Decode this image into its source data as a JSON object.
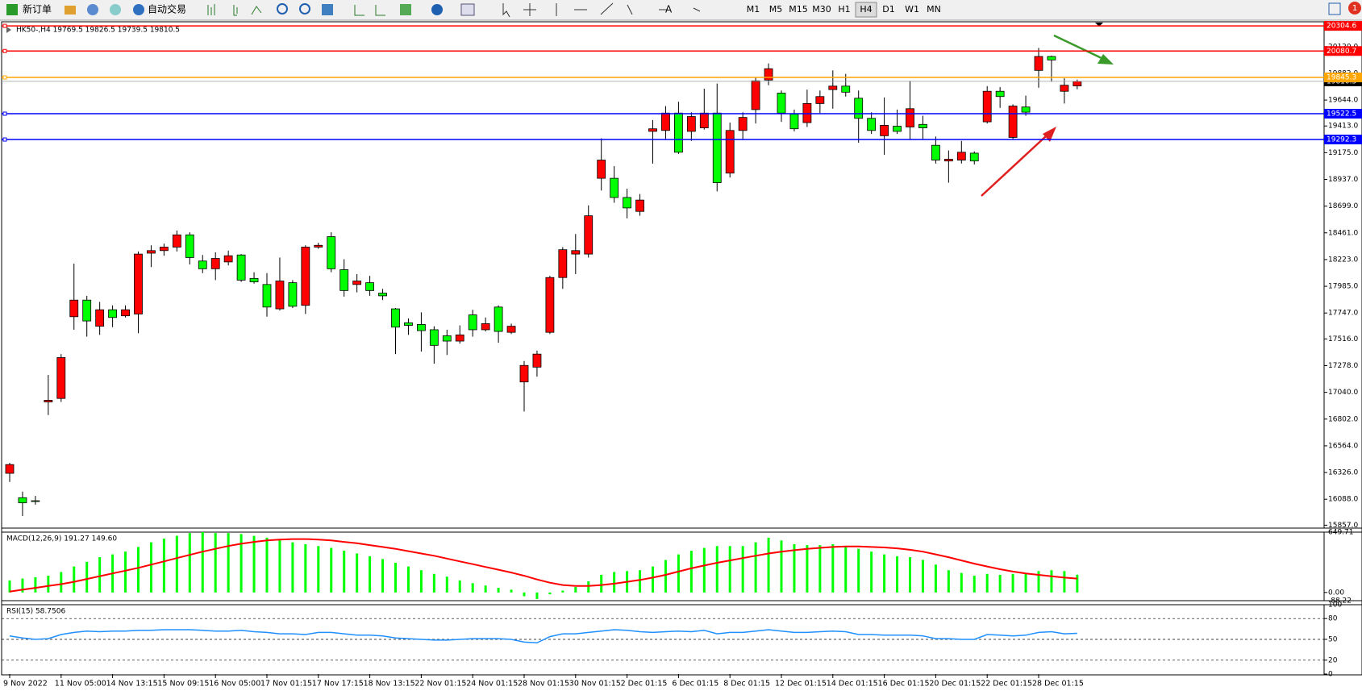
{
  "toolbar": {
    "new_order": "新订单",
    "auto_trading": "自动交易",
    "timeframes": [
      "M1",
      "M5",
      "M15",
      "M30",
      "H1",
      "H4",
      "D1",
      "W1",
      "MN"
    ],
    "selected": "H4",
    "notifications": "1"
  },
  "chart_data": [
    {
      "type": "candlestick",
      "title": "HK50-,H4  19769.5 19826.5 19739.5 19810.5",
      "up_color": "#ff0000",
      "down_color": "#00ff00",
      "categories": [
        "9 Nov 2022",
        null,
        null,
        null,
        "11 Nov 05:00",
        null,
        null,
        null,
        "14 Nov 13:15",
        null,
        null,
        null,
        "15 Nov 09:15",
        null,
        null,
        null,
        "16 Nov 05:00",
        null,
        null,
        null,
        "17 Nov 01:15",
        null,
        null,
        null,
        "17 Nov 17:15",
        null,
        null,
        null,
        "18 Nov 13:15",
        null,
        null,
        null,
        "22 Nov 01:15",
        null,
        null,
        null,
        "24 Nov 01:15",
        null,
        null,
        null,
        "28 Nov 01:15",
        null,
        null,
        null,
        "30 Nov 01:15",
        null,
        null,
        null,
        "2 Dec 01:15",
        null,
        null,
        null,
        "6 Dec 01:15",
        null,
        null,
        null,
        "8 Dec 01:15",
        null,
        null,
        null,
        "12 Dec 01:15",
        null,
        null,
        null,
        "14 Dec 01:15",
        null,
        null,
        null,
        "16 Dec 01:15",
        null,
        null,
        null,
        "20 Dec 01:15",
        null,
        null,
        null,
        "22 Dec 01:15",
        null,
        null,
        null,
        "28 Dec 01:15",
        null,
        null,
        null
      ],
      "open": [
        16319,
        16102,
        16075,
        16955,
        16986,
        17714,
        17862,
        17629,
        17776,
        17722,
        17738,
        18280,
        18303,
        18334,
        18443,
        18210,
        18141,
        18202,
        18264,
        18055,
        18001,
        17784,
        18017,
        17815,
        18334,
        18427,
        18133,
        18001,
        18017,
        17924,
        17784,
        17660,
        17645,
        17598,
        17544,
        17497,
        17730,
        17598,
        17800,
        17575,
        17133,
        17265,
        17575,
        18063,
        18272,
        18272,
        18947,
        18947,
        18776,
        18652,
        19365,
        19373,
        19528,
        19365,
        19396,
        19528,
        18993,
        19373,
        19559,
        19822,
        19706,
        19520,
        19443,
        19613,
        19737,
        19768,
        19660,
        19481,
        19326,
        19411,
        19404,
        19427,
        19241,
        19101,
        19109,
        19171,
        19450,
        19722,
        19311,
        19582,
        19908,
        20032,
        19722,
        19769.5
      ],
      "high": [
        16413,
        16156,
        16118,
        17195,
        17381,
        18187,
        17900,
        17846,
        17815,
        17815,
        18295,
        18350,
        18365,
        18482,
        18466,
        18264,
        18288,
        18303,
        18272,
        18110,
        18102,
        18241,
        18040,
        18350,
        18373,
        18466,
        18226,
        18094,
        18078,
        17962,
        17792,
        17699,
        17753,
        17629,
        17598,
        17637,
        17776,
        17707,
        17815,
        17652,
        17319,
        17412,
        18078,
        18334,
        18451,
        18706,
        19303,
        19055,
        18854,
        18807,
        19466,
        19590,
        19629,
        19535,
        19745,
        19791,
        19443,
        19535,
        19845,
        19970,
        19729,
        19559,
        19737,
        19729,
        19908,
        19877,
        19729,
        19535,
        19667,
        19559,
        19815,
        19504,
        19319,
        19195,
        19280,
        19187,
        19768,
        19760,
        19605,
        19683,
        20109,
        20040,
        19838,
        19826.5
      ],
      "low": [
        16242,
        15939,
        16040,
        16838,
        16955,
        17598,
        17536,
        17552,
        17621,
        17707,
        17567,
        18156,
        18257,
        18295,
        18179,
        18102,
        18040,
        18171,
        18024,
        18009,
        17714,
        17769,
        17792,
        17738,
        18319,
        18110,
        17893,
        17931,
        17900,
        17862,
        17381,
        17552,
        17404,
        17296,
        17373,
        17474,
        17536,
        17583,
        17482,
        17560,
        16870,
        17180,
        17560,
        17962,
        18094,
        18241,
        18838,
        18729,
        18590,
        18613,
        19078,
        19288,
        19164,
        19280,
        19381,
        18830,
        18954,
        19288,
        19435,
        19776,
        19450,
        19365,
        19404,
        19528,
        19567,
        19675,
        19264,
        19342,
        19156,
        19342,
        19288,
        19288,
        19078,
        18908,
        19078,
        19070,
        19435,
        19574,
        19295,
        19504,
        19753,
        19807,
        19613,
        19739.5
      ],
      "close": [
        16397,
        16056,
        16071,
        16970,
        17350,
        17862,
        17676,
        17776,
        17707,
        17776,
        18272,
        18303,
        18334,
        18443,
        18241,
        18141,
        18233,
        18257,
        18040,
        18024,
        17800,
        18032,
        17807,
        18334,
        18350,
        18141,
        17947,
        18032,
        17947,
        17900,
        17621,
        17637,
        17590,
        17459,
        17497,
        17552,
        17598,
        17652,
        17583,
        17629,
        17280,
        17381,
        18063,
        18311,
        18303,
        18613,
        19109,
        18776,
        18683,
        18753,
        19388,
        19528,
        19179,
        19497,
        19528,
        18908,
        19373,
        19489,
        19815,
        19923,
        19528,
        19388,
        19613,
        19675,
        19768,
        19714,
        19481,
        19373,
        19419,
        19365,
        19567,
        19396,
        19109,
        19117,
        19179,
        19101,
        19722,
        19675,
        19590,
        19536,
        20032,
        20001,
        19776,
        19810.5
      ],
      "ylim": [
        15831,
        20334
      ],
      "yticks": [
        {
          "value": 15857,
          "label": "15857.0"
        },
        {
          "value": 16088,
          "label": "16088.0"
        },
        {
          "value": 16326,
          "label": "16326.0"
        },
        {
          "value": 16564,
          "label": "16564.0"
        },
        {
          "value": 16802,
          "label": "16802.0"
        },
        {
          "value": 17040,
          "label": "17040.0"
        },
        {
          "value": 17278,
          "label": "17278.0"
        },
        {
          "value": 17516,
          "label": "17516.0"
        },
        {
          "value": 17747,
          "label": "17747.0"
        },
        {
          "value": 17985,
          "label": "17985.0"
        },
        {
          "value": 18223,
          "label": "18223.0"
        },
        {
          "value": 18461,
          "label": "18461.0"
        },
        {
          "value": 18699,
          "label": "18699.0"
        },
        {
          "value": 18937,
          "label": "18937.0"
        },
        {
          "value": 19175,
          "label": "19175.0"
        },
        {
          "value": 19413,
          "label": "19413.0"
        },
        {
          "value": 19644,
          "label": "19644.0"
        },
        {
          "value": 19882,
          "label": "19882.0"
        },
        {
          "value": 20120,
          "label": "20120.0"
        }
      ],
      "levels": [
        {
          "value": 20304.6,
          "color": "#ff0000"
        },
        {
          "value": 20080.7,
          "color": "#ff0000"
        },
        {
          "value": 19845.3,
          "color": "#ffa500"
        },
        {
          "value": 19522.5,
          "color": "#0000ff"
        },
        {
          "value": 19292.3,
          "color": "#0000ff"
        }
      ]
    },
    {
      "type": "macd",
      "title": "MACD(12,26,9) 191.27 149.60",
      "ylim": [
        -88.22,
        649.71
      ],
      "yticks": [
        649.71,
        {
          "value": 0,
          "label": "0.00"
        },
        -88.22
      ],
      "histogram": {
        "color": "#00ff00",
        "values": [
          130,
          150,
          165,
          180,
          220,
          280,
          330,
          380,
          410,
          440,
          490,
          540,
          580,
          610,
          640,
          650,
          640,
          640,
          630,
          610,
          590,
          570,
          540,
          520,
          500,
          480,
          450,
          420,
          390,
          360,
          320,
          280,
          240,
          200,
          170,
          130,
          100,
          75,
          50,
          30,
          -40,
          -70,
          -20,
          20,
          60,
          120,
          190,
          220,
          230,
          240,
          280,
          350,
          410,
          450,
          480,
          500,
          500,
          500,
          540,
          590,
          560,
          520,
          510,
          510,
          520,
          500,
          470,
          440,
          410,
          390,
          380,
          350,
          300,
          240,
          210,
          180,
          200,
          190,
          200,
          200,
          230,
          240,
          230,
          191.27
        ]
      },
      "signal": {
        "color": "#ff0000",
        "values": [
          10,
          30,
          50,
          70,
          90,
          115,
          145,
          175,
          205,
          235,
          265,
          300,
          335,
          370,
          405,
          440,
          470,
          500,
          525,
          545,
          560,
          570,
          575,
          575,
          570,
          560,
          545,
          530,
          510,
          490,
          470,
          445,
          420,
          395,
          365,
          335,
          305,
          275,
          245,
          215,
          180,
          140,
          105,
          80,
          70,
          70,
          80,
          95,
          115,
          135,
          160,
          190,
          225,
          260,
          290,
          320,
          345,
          370,
          395,
          420,
          440,
          455,
          470,
          480,
          490,
          495,
          495,
          490,
          485,
          475,
          460,
          440,
          410,
          380,
          345,
          310,
          280,
          250,
          225,
          205,
          190,
          175,
          160,
          149.6
        ]
      }
    },
    {
      "type": "rsi",
      "title": "RSI(15) 58.7506",
      "color": "#1e90ff",
      "ylim": [
        0,
        100
      ],
      "yticks": [
        100,
        80,
        50,
        20,
        0
      ],
      "levels": [
        80,
        50,
        20
      ],
      "values": [
        55,
        52,
        50,
        51,
        57,
        60,
        62,
        61,
        62,
        62,
        63,
        63,
        64,
        64,
        64,
        63,
        62,
        62,
        63,
        61,
        60,
        58,
        58,
        57,
        60,
        60,
        58,
        56,
        56,
        55,
        52,
        51,
        50,
        49,
        49,
        50,
        51,
        51,
        51,
        50,
        46,
        45,
        54,
        58,
        58,
        60,
        62,
        64,
        63,
        61,
        60,
        61,
        62,
        61,
        63,
        58,
        60,
        60,
        62,
        64,
        62,
        60,
        60,
        61,
        62,
        61,
        57,
        57,
        56,
        56,
        56,
        55,
        51,
        51,
        50,
        50,
        57,
        56,
        55,
        56,
        60,
        61,
        58,
        58.7506
      ]
    }
  ]
}
